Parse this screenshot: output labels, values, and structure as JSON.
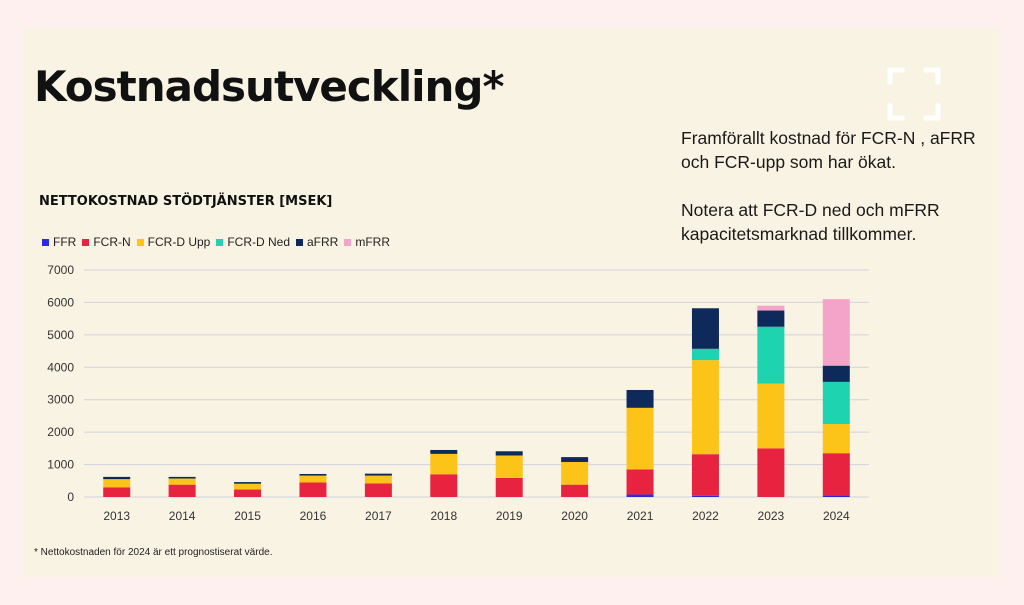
{
  "slide": {
    "title": "Kostnadsutveckling*",
    "notes": [
      "Framförallt kostnad för FCR-N , aFRR och FCR-upp som har ökat.",
      "Notera att FCR-D ned och mFRR kapacitetsmarknad tillkommer."
    ],
    "footnote": "* Nettokostnaden för 2024 är ett prognostiserat värde.",
    "fullscreen_icon": "fullscreen-icon"
  },
  "chart_data": {
    "type": "bar",
    "stacked": true,
    "title": "NETTOKOSTNAD STÖDTJÄNSTER [MSEK]",
    "xlabel": "",
    "ylabel": "",
    "ylim": [
      0,
      7000
    ],
    "yticks": [
      "0",
      "1000",
      "2000",
      "3000",
      "4000",
      "5000",
      "6000",
      "7000"
    ],
    "grid": true,
    "legend_position": "top-left",
    "categories": [
      "2013",
      "2014",
      "2015",
      "2016",
      "2017",
      "2018",
      "2019",
      "2020",
      "2021",
      "2022",
      "2023",
      "2024"
    ],
    "series": [
      {
        "name": "FFR",
        "color": "#2b2bd9",
        "values": [
          0,
          0,
          0,
          0,
          0,
          0,
          0,
          0,
          80,
          40,
          0,
          50
        ]
      },
      {
        "name": "FCR-N",
        "color": "#e8233f",
        "values": [
          300,
          380,
          230,
          450,
          420,
          700,
          590,
          380,
          770,
          1280,
          1500,
          1300
        ]
      },
      {
        "name": "FCR-D Upp",
        "color": "#fcc419",
        "values": [
          250,
          190,
          180,
          210,
          240,
          630,
          690,
          700,
          1900,
          2900,
          2000,
          900
        ]
      },
      {
        "name": "FCR-D Ned",
        "color": "#1dd3b0",
        "values": [
          0,
          0,
          0,
          0,
          0,
          0,
          0,
          0,
          0,
          350,
          1750,
          1300
        ]
      },
      {
        "name": "aFRR",
        "color": "#0e2a5a",
        "values": [
          70,
          50,
          50,
          50,
          60,
          120,
          130,
          150,
          550,
          1250,
          500,
          500
        ]
      },
      {
        "name": "mFRR",
        "color": "#f4a3c9",
        "values": [
          0,
          0,
          0,
          0,
          0,
          0,
          0,
          0,
          0,
          0,
          150,
          2050
        ]
      }
    ]
  }
}
